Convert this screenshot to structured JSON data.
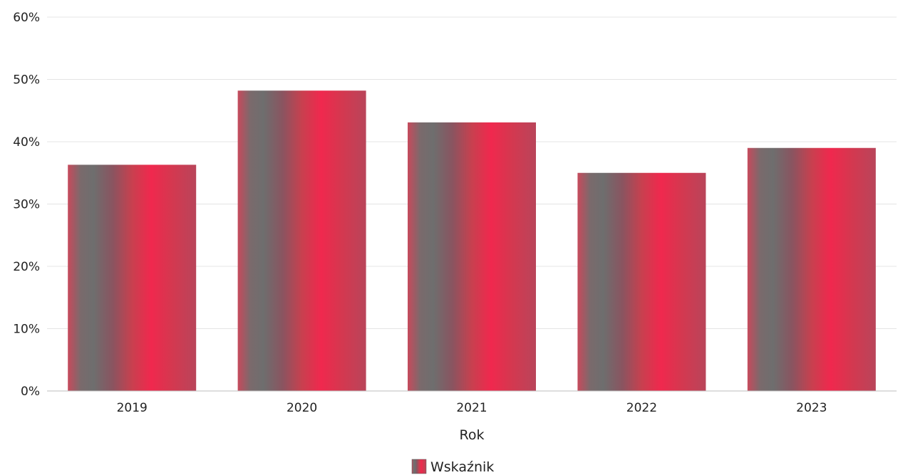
{
  "chart_data": {
    "type": "bar",
    "title": "",
    "xlabel": "Rok",
    "ylabel": "",
    "categories": [
      "2019",
      "2020",
      "2021",
      "2022",
      "2023"
    ],
    "series": [
      {
        "name": "Wskaźnik",
        "values": [
          36.3,
          48.2,
          43.1,
          35.0,
          39.0
        ]
      }
    ],
    "ylim": [
      0,
      60
    ],
    "yticks": [
      0,
      10,
      20,
      30,
      40,
      50,
      60
    ],
    "ytick_labels": [
      "0%",
      "10%",
      "20%",
      "30%",
      "40%",
      "50%",
      "60%"
    ],
    "grid": true,
    "legend_position": "bottom-center",
    "colors": {
      "bar_gray": "#6e6e6e",
      "bar_red": "#f0284e",
      "grid": "#e4e4e4",
      "axis": "#bdbdbd"
    }
  }
}
